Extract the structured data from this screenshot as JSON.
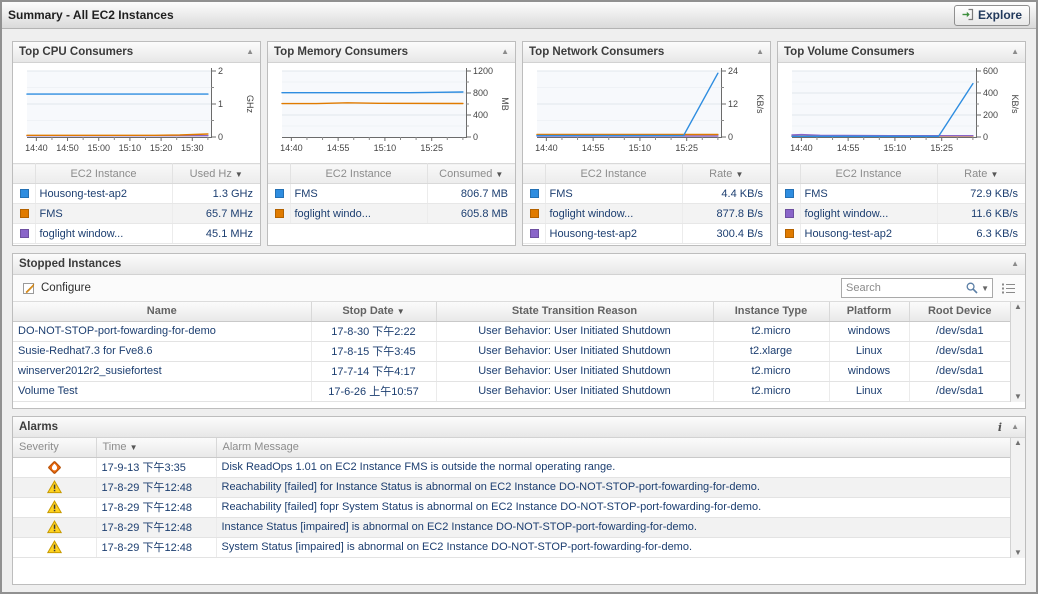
{
  "header": {
    "title": "Summary - All EC2 Instances",
    "explore_label": "Explore"
  },
  "consumers": [
    {
      "title": "Top CPU Consumers",
      "table": {
        "instance_header": "EC2 Instance",
        "value_header": "Used Hz",
        "rows": [
          {
            "color": "#2e8de0",
            "name": "Housong-test-ap2",
            "value": "1.3 GHz"
          },
          {
            "color": "#e07b00",
            "name": "FMS",
            "value": "65.7 MHz"
          },
          {
            "color": "#8a65c9",
            "name": "foglight window...",
            "value": "45.1 MHz"
          }
        ]
      }
    },
    {
      "title": "Top Memory Consumers",
      "table": {
        "instance_header": "EC2 Instance",
        "value_header": "Consumed",
        "rows": [
          {
            "color": "#2e8de0",
            "name": "FMS",
            "value": "806.7 MB"
          },
          {
            "color": "#e07b00",
            "name": "foglight windo...",
            "value": "605.8 MB"
          }
        ]
      }
    },
    {
      "title": "Top Network Consumers",
      "table": {
        "instance_header": "EC2 Instance",
        "value_header": "Rate",
        "rows": [
          {
            "color": "#2e8de0",
            "name": "FMS",
            "value": "4.4 KB/s"
          },
          {
            "color": "#e07b00",
            "name": "foglight window...",
            "value": "877.8 B/s"
          },
          {
            "color": "#8a65c9",
            "name": "Housong-test-ap2",
            "value": "300.4 B/s"
          }
        ]
      }
    },
    {
      "title": "Top Volume Consumers",
      "table": {
        "instance_header": "EC2 Instance",
        "value_header": "Rate",
        "rows": [
          {
            "color": "#2e8de0",
            "name": "FMS",
            "value": "72.9 KB/s"
          },
          {
            "color": "#8a65c9",
            "name": "foglight window...",
            "value": "11.6 KB/s"
          },
          {
            "color": "#e07b00",
            "name": "Housong-test-ap2",
            "value": "6.3 KB/s"
          }
        ]
      }
    }
  ],
  "chart_data": [
    {
      "type": "line",
      "title": "Top CPU Consumers",
      "ylabel": "GHz",
      "ylim": [
        0,
        2
      ],
      "yticks": [
        0,
        1,
        2
      ],
      "yticks_minor": [
        0.5,
        1.5
      ],
      "xlim_minutes": [
        -3,
        56
      ],
      "xticks": [
        {
          "label": "14:40",
          "t": 0
        },
        {
          "label": "14:50",
          "t": 10
        },
        {
          "label": "15:00",
          "t": 20
        },
        {
          "label": "15:10",
          "t": 30
        },
        {
          "label": "15:20",
          "t": 40
        },
        {
          "label": "15:30",
          "t": 50
        }
      ],
      "xticks_minor": [
        5,
        15,
        25,
        35,
        45,
        55
      ],
      "series": [
        {
          "name": "Housong-test-ap2",
          "color": "#2e8de0",
          "points": [
            [
              -3,
              1.3
            ],
            [
              55,
              1.3
            ]
          ]
        },
        {
          "name": "FMS",
          "color": "#e07b00",
          "points": [
            [
              -3,
              0.05
            ],
            [
              38,
              0.05
            ],
            [
              46,
              0.06
            ],
            [
              55,
              0.09
            ]
          ]
        },
        {
          "name": "foglight window...",
          "color": "#8a65c9",
          "points": [
            [
              -3,
              0.04
            ],
            [
              55,
              0.04
            ]
          ]
        }
      ]
    },
    {
      "type": "line",
      "title": "Top Memory Consumers",
      "ylabel": "MB",
      "ylim": [
        0,
        1200
      ],
      "yticks": [
        0,
        400,
        800,
        1200
      ],
      "yticks_minor": [
        200,
        600,
        1000
      ],
      "xlim_minutes": [
        -3,
        56
      ],
      "xticks": [
        {
          "label": "14:40",
          "t": 0
        },
        {
          "label": "14:55",
          "t": 15
        },
        {
          "label": "15:10",
          "t": 30
        },
        {
          "label": "15:25",
          "t": 45
        }
      ],
      "xticks_minor": [
        5,
        10,
        20,
        25,
        35,
        40,
        50,
        55
      ],
      "series": [
        {
          "name": "FMS",
          "color": "#2e8de0",
          "points": [
            [
              -3,
              806
            ],
            [
              38,
              806
            ],
            [
              47,
              812
            ],
            [
              55,
              818
            ]
          ]
        },
        {
          "name": "foglight windo...",
          "color": "#e07b00",
          "points": [
            [
              -3,
              608
            ],
            [
              8,
              608
            ],
            [
              18,
              622
            ],
            [
              28,
              613
            ],
            [
              55,
              610
            ]
          ]
        }
      ]
    },
    {
      "type": "line",
      "title": "Top Network Consumers",
      "ylabel": "KB/s",
      "ylim": [
        0,
        24
      ],
      "yticks": [
        0,
        12,
        24
      ],
      "yticks_minor": [
        6,
        18
      ],
      "xlim_minutes": [
        -3,
        56
      ],
      "xticks": [
        {
          "label": "14:40",
          "t": 0
        },
        {
          "label": "14:55",
          "t": 15
        },
        {
          "label": "15:10",
          "t": 30
        },
        {
          "label": "15:25",
          "t": 45
        }
      ],
      "xticks_minor": [
        5,
        10,
        20,
        25,
        35,
        40,
        50,
        55
      ],
      "series": [
        {
          "name": "FMS",
          "color": "#2e8de0",
          "points": [
            [
              -3,
              0.5
            ],
            [
              44,
              0.5
            ],
            [
              55,
              23.2
            ]
          ]
        },
        {
          "name": "foglight window...",
          "color": "#e07b00",
          "points": [
            [
              -3,
              0.9
            ],
            [
              55,
              0.9
            ]
          ]
        },
        {
          "name": "Housong-test-ap2",
          "color": "#8a65c9",
          "points": [
            [
              -3,
              0.35
            ],
            [
              55,
              0.35
            ]
          ]
        }
      ]
    },
    {
      "type": "line",
      "title": "Top Volume Consumers",
      "ylabel": "KB/s",
      "ylim": [
        0,
        600
      ],
      "yticks": [
        0,
        200,
        400,
        600
      ],
      "yticks_minor": [
        100,
        300,
        500
      ],
      "xlim_minutes": [
        -3,
        56
      ],
      "xticks": [
        {
          "label": "14:40",
          "t": 0
        },
        {
          "label": "14:55",
          "t": 15
        },
        {
          "label": "15:10",
          "t": 30
        },
        {
          "label": "15:25",
          "t": 45
        }
      ],
      "xticks_minor": [
        5,
        10,
        20,
        25,
        35,
        40,
        50,
        55
      ],
      "series": [
        {
          "name": "FMS",
          "color": "#2e8de0",
          "points": [
            [
              -3,
              6
            ],
            [
              44,
              6
            ],
            [
              55,
              485
            ]
          ]
        },
        {
          "name": "foglight window...",
          "color": "#8a65c9",
          "points": [
            [
              -3,
              18
            ],
            [
              0,
              22
            ],
            [
              6,
              15
            ],
            [
              30,
              12
            ],
            [
              55,
              12
            ]
          ]
        },
        {
          "name": "Housong-test-ap2",
          "color": "#e07b00",
          "points": [
            [
              -3,
              8
            ],
            [
              55,
              8
            ]
          ]
        }
      ]
    }
  ],
  "stopped": {
    "title": "Stopped Instances",
    "configure_label": "Configure",
    "search_placeholder": "Search",
    "columns": [
      "Name",
      "Stop Date",
      "State Transition Reason",
      "Instance Type",
      "Platform",
      "Root Device"
    ],
    "rows": [
      [
        "DO-NOT-STOP-port-fowarding-for-demo",
        "17-8-30 下午2:22",
        "User Behavior: User Initiated Shutdown",
        "t2.micro",
        "windows",
        "/dev/sda1"
      ],
      [
        "Susie-Redhat7.3 for Fve8.6",
        "17-8-15 下午3:45",
        "User Behavior: User Initiated Shutdown",
        "t2.xlarge",
        "Linux",
        "/dev/sda1"
      ],
      [
        "winserver2012r2_susiefortest",
        "17-7-14 下午4:17",
        "User Behavior: User Initiated Shutdown",
        "t2.micro",
        "windows",
        "/dev/sda1"
      ],
      [
        "Volume Test",
        "17-6-26 上午10:57",
        "User Behavior: User Initiated Shutdown",
        "t2.micro",
        "Linux",
        "/dev/sda1"
      ]
    ]
  },
  "alarms": {
    "title": "Alarms",
    "columns": [
      "Severity",
      "Time",
      "Alarm Message"
    ],
    "rows": [
      {
        "severity": "critical",
        "time": "17-9-13 下午3:35",
        "message": "Disk ReadOps 1.01 on EC2 Instance FMS is outside the normal operating range."
      },
      {
        "severity": "warning",
        "time": "17-8-29 下午12:48",
        "message": "Reachability [failed] for Instance Status is abnormal on EC2 Instance DO-NOT-STOP-port-fowarding-for-demo."
      },
      {
        "severity": "warning",
        "time": "17-8-29 下午12:48",
        "message": "Reachability [failed] fopr System Status is abnormal on EC2 Instance DO-NOT-STOP-port-fowarding-for-demo."
      },
      {
        "severity": "warning",
        "time": "17-8-29 下午12:48",
        "message": "Instance Status [impaired] is abnormal on EC2 Instance DO-NOT-STOP-port-fowarding-for-demo."
      },
      {
        "severity": "warning",
        "time": "17-8-29 下午12:48",
        "message": "System Status [impaired] is abnormal on EC2 Instance DO-NOT-STOP-port-fowarding-for-demo."
      }
    ]
  }
}
